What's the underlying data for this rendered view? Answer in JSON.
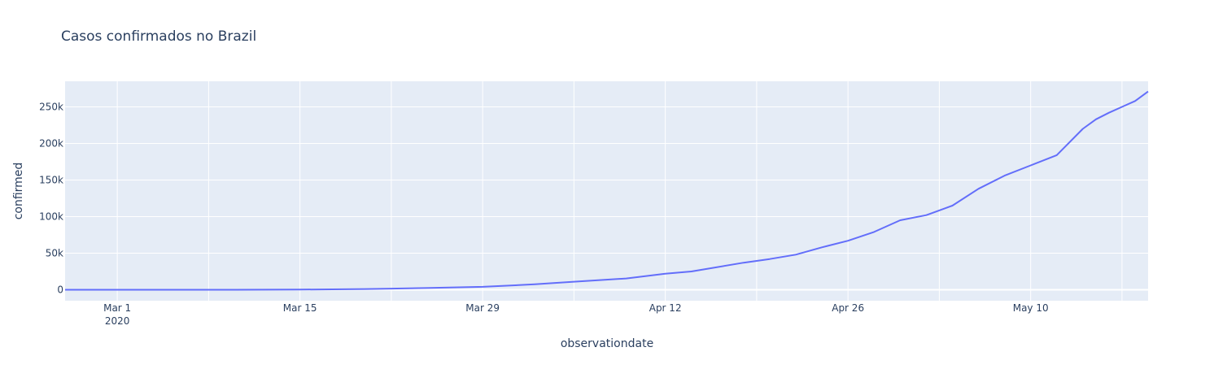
{
  "chart_data": {
    "type": "line",
    "title": "Casos confirmados no Brazil",
    "xlabel": "observationdate",
    "ylabel": "confirmed",
    "xlim": [
      "2020-02-26",
      "2020-05-19"
    ],
    "ylim": [
      -15000,
      285000
    ],
    "x_ticks": [
      {
        "date": "2020-03-01",
        "label": "Mar 1",
        "sublabel": "2020"
      },
      {
        "date": "2020-03-15",
        "label": "Mar 15"
      },
      {
        "date": "2020-03-29",
        "label": "Mar 29"
      },
      {
        "date": "2020-04-12",
        "label": "Apr 12"
      },
      {
        "date": "2020-04-26",
        "label": "Apr 26"
      },
      {
        "date": "2020-05-10",
        "label": "May 10"
      }
    ],
    "y_ticks": [
      {
        "value": 0,
        "label": "0"
      },
      {
        "value": 50000,
        "label": "50k"
      },
      {
        "value": 100000,
        "label": "100k"
      },
      {
        "value": 150000,
        "label": "150k"
      },
      {
        "value": 200000,
        "label": "200k"
      },
      {
        "value": 250000,
        "label": "250k"
      }
    ],
    "grid": true,
    "line_color": "#636efa",
    "plot_bg": "#e5ecf6",
    "series": [
      {
        "x": [
          "2020-02-26",
          "2020-03-01",
          "2020-03-05",
          "2020-03-10",
          "2020-03-15",
          "2020-03-20",
          "2020-03-22",
          "2020-03-25",
          "2020-03-29",
          "2020-04-02",
          "2020-04-05",
          "2020-04-09",
          "2020-04-12",
          "2020-04-14",
          "2020-04-16",
          "2020-04-18",
          "2020-04-20",
          "2020-04-22",
          "2020-04-24",
          "2020-04-26",
          "2020-04-28",
          "2020-04-30",
          "2020-05-02",
          "2020-05-04",
          "2020-05-06",
          "2020-05-08",
          "2020-05-10",
          "2020-05-12",
          "2020-05-14",
          "2020-05-15",
          "2020-05-16",
          "2020-05-17",
          "2020-05-18",
          "2020-05-19"
        ],
        "y": [
          0,
          2,
          10,
          50,
          200,
          1000,
          1500,
          2500,
          4000,
          7500,
          11000,
          15500,
          22000,
          25000,
          31000,
          37000,
          42000,
          48000,
          58000,
          67000,
          79000,
          95000,
          102000,
          115000,
          138000,
          156000,
          170000,
          184000,
          220000,
          233000,
          242000,
          250000,
          258000,
          271000
        ]
      }
    ]
  }
}
